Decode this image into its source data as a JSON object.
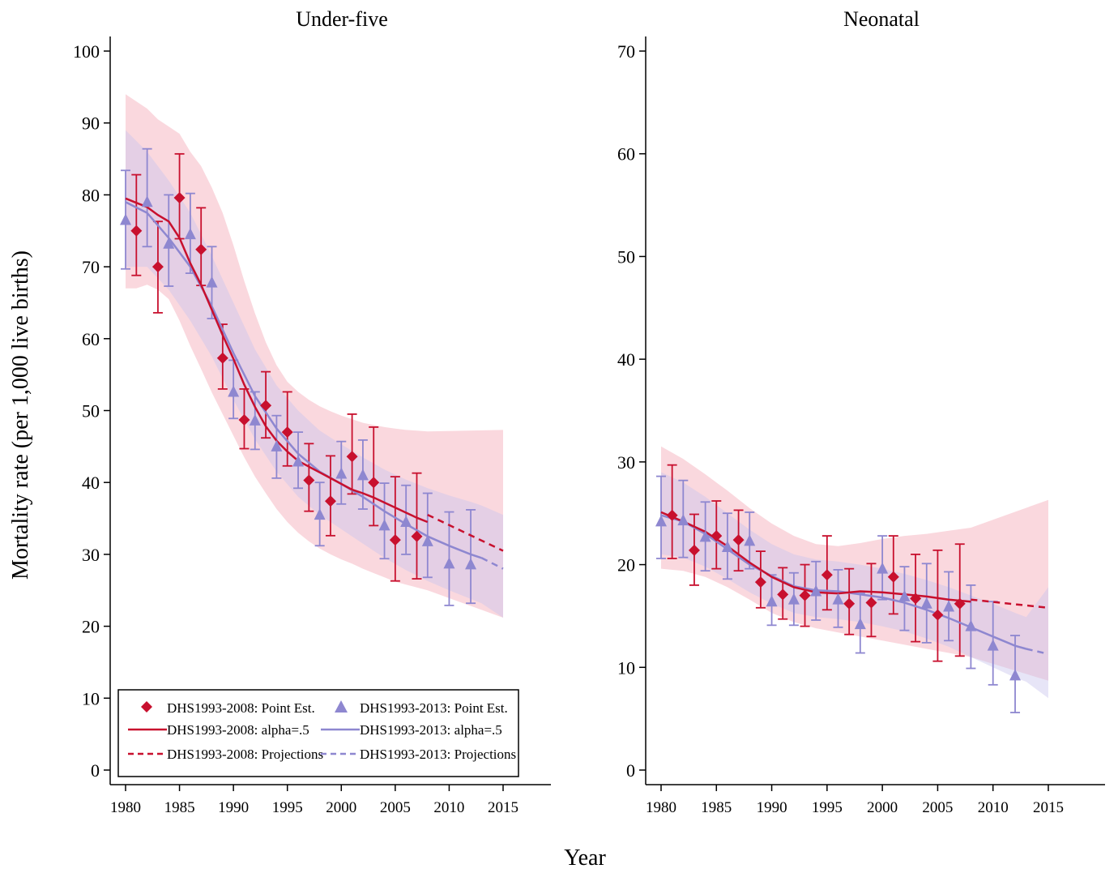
{
  "figure": {
    "ylabel": "Mortality rate (per 1,000 live births)",
    "xlabel": "Year"
  },
  "colors": {
    "dhs2008": "#c8102e",
    "dhs2013": "#8e87d0",
    "band2008": "#f4a9b5",
    "band2013": "#c9c6ee"
  },
  "legend": {
    "point2008": "DHS1993-2008: Point Est.",
    "point2013": "DHS1993-2013: Point Est.",
    "smooth2008": "DHS1993-2008: alpha=.5",
    "smooth2013": "DHS1993-2013: alpha=.5",
    "proj2008": "DHS1993-2008: Projections",
    "proj2013": "DHS1993-2013: Projections"
  },
  "chart_data": [
    {
      "type": "line",
      "title": "Under-five",
      "xlabel": "Year",
      "ylabel": "Mortality rate (per 1,000 live births)",
      "xlim": [
        1980,
        2015
      ],
      "ylim": [
        0,
        100
      ],
      "xticks": [
        1980,
        1985,
        1990,
        1995,
        2000,
        2005,
        2010,
        2015
      ],
      "yticks": [
        0,
        10,
        20,
        30,
        40,
        50,
        60,
        70,
        80,
        90,
        100
      ],
      "legend_position": "bottom-left",
      "point_estimates": [
        {
          "name": "DHS1993-2008: Point Est.",
          "x": [
            1981,
            1983,
            1985,
            1987,
            1989,
            1991,
            1993,
            1995,
            1997,
            1999,
            2001,
            2003,
            2005,
            2007
          ],
          "y": [
            75.0,
            70.0,
            79.6,
            72.4,
            57.3,
            48.7,
            50.7,
            47.0,
            40.3,
            37.4,
            43.6,
            40.0,
            32.0,
            32.5
          ],
          "lo": [
            68.8,
            63.6,
            73.9,
            67.4,
            53.0,
            44.7,
            46.2,
            42.3,
            36.0,
            32.6,
            38.4,
            34.0,
            26.3,
            26.6
          ],
          "hi": [
            82.8,
            76.3,
            85.7,
            78.2,
            62.0,
            53.0,
            55.4,
            52.6,
            45.4,
            43.7,
            49.5,
            47.7,
            40.8,
            41.3
          ]
        },
        {
          "name": "DHS1993-2013: Point Est.",
          "x": [
            1980,
            1982,
            1984,
            1986,
            1988,
            1990,
            1992,
            1994,
            1996,
            1998,
            2000,
            2002,
            2004,
            2006,
            2008,
            2010,
            2012
          ],
          "y": [
            76.5,
            79.0,
            73.2,
            74.5,
            67.8,
            52.6,
            48.6,
            45.0,
            42.9,
            35.5,
            41.2,
            41.0,
            34.0,
            34.5,
            31.8,
            28.7,
            28.6
          ],
          "lo": [
            69.7,
            72.8,
            67.3,
            69.1,
            62.8,
            48.9,
            44.6,
            40.6,
            39.2,
            31.2,
            37.0,
            36.3,
            29.4,
            30.0,
            26.8,
            22.9,
            23.2
          ],
          "hi": [
            83.4,
            86.4,
            80.0,
            80.2,
            72.8,
            57.0,
            52.6,
            49.3,
            47.0,
            40.0,
            45.7,
            45.9,
            39.9,
            39.6,
            38.5,
            35.9,
            36.2
          ]
        }
      ],
      "smoothed": [
        {
          "name": "DHS1993-2008: alpha=.5",
          "x": [
            1980,
            1981,
            1982,
            1983,
            1984,
            1985,
            1986,
            1987,
            1988,
            1989,
            1990,
            1991,
            1992,
            1993,
            1994,
            1995,
            1996,
            1997,
            1998,
            1999,
            2000,
            2001,
            2002,
            2003,
            2004,
            2005,
            2006,
            2007,
            2008
          ],
          "y": [
            79.5,
            78.9,
            78.3,
            77.2,
            76.3,
            74.0,
            70.5,
            67.5,
            64.0,
            60.5,
            57.2,
            53.6,
            50.5,
            47.8,
            45.8,
            44.3,
            43.0,
            42.2,
            41.4,
            40.6,
            39.8,
            39.0,
            38.5,
            37.9,
            37.2,
            36.5,
            35.8,
            35.1,
            34.5
          ],
          "lo": [
            67.0,
            67.0,
            67.5,
            66.8,
            65.5,
            62.5,
            59.0,
            55.8,
            52.5,
            49.5,
            46.5,
            43.5,
            40.8,
            38.5,
            36.3,
            34.5,
            33.0,
            31.8,
            30.8,
            30.0,
            29.3,
            28.7,
            28.0,
            27.4,
            26.8,
            26.2,
            25.8,
            25.4,
            25.0
          ],
          "hi": [
            94.0,
            93.0,
            92.0,
            90.5,
            89.5,
            88.5,
            86.0,
            84.0,
            81.0,
            77.5,
            73.0,
            68.0,
            63.5,
            59.5,
            56.3,
            54.0,
            52.6,
            51.5,
            50.6,
            49.9,
            49.3,
            48.8,
            48.3,
            48.0,
            47.7,
            47.5,
            47.3,
            47.2,
            47.1
          ]
        },
        {
          "name": "DHS1993-2013: alpha=.5",
          "x": [
            1980,
            1982,
            1984,
            1986,
            1988,
            1990,
            1992,
            1994,
            1996,
            1998,
            2000,
            2002,
            2004,
            2006,
            2008,
            2010,
            2012,
            2013
          ],
          "y": [
            79.0,
            77.5,
            74.0,
            70.0,
            64.5,
            58.0,
            52.0,
            47.5,
            44.0,
            41.5,
            39.8,
            38.0,
            36.0,
            34.2,
            32.5,
            31.2,
            30.0,
            29.5
          ],
          "lo": [
            70.0,
            70.0,
            66.8,
            62.5,
            57.5,
            51.5,
            46.0,
            41.5,
            38.0,
            35.5,
            33.5,
            31.5,
            29.5,
            27.8,
            26.3,
            25.0,
            23.8,
            23.2
          ],
          "hi": [
            89.0,
            86.0,
            82.0,
            77.5,
            71.5,
            65.0,
            58.5,
            53.5,
            50.0,
            47.2,
            45.3,
            43.5,
            41.8,
            40.4,
            39.2,
            38.2,
            37.3,
            36.8
          ]
        }
      ],
      "projections": [
        {
          "name": "DHS1993-2008: Projections",
          "x": [
            2008,
            2015
          ],
          "y": [
            35.5,
            30.5
          ],
          "lo": [
            25.0,
            21.2
          ],
          "hi": [
            47.1,
            47.3
          ]
        },
        {
          "name": "DHS1993-2013: Projections",
          "x": [
            2013,
            2015
          ],
          "y": [
            29.5,
            28.0
          ],
          "lo": [
            23.2,
            21.2
          ],
          "hi": [
            36.8,
            35.5
          ]
        }
      ]
    },
    {
      "type": "line",
      "title": "Neonatal",
      "xlabel": "Year",
      "ylabel": "Mortality rate (per 1,000 live births)",
      "xlim": [
        1980,
        2015
      ],
      "ylim": [
        0,
        70
      ],
      "xticks": [
        1980,
        1985,
        1990,
        1995,
        2000,
        2005,
        2010,
        2015
      ],
      "yticks": [
        0,
        10,
        20,
        30,
        40,
        50,
        60,
        70
      ],
      "point_estimates": [
        {
          "name": "DHS1993-2008: Point Est.",
          "x": [
            1981,
            1983,
            1985,
            1987,
            1989,
            1991,
            1993,
            1995,
            1997,
            1999,
            2001,
            2003,
            2005,
            2007
          ],
          "y": [
            24.8,
            21.4,
            22.8,
            22.4,
            18.3,
            17.1,
            17.0,
            19.0,
            16.2,
            16.3,
            18.8,
            16.7,
            15.1,
            16.2
          ],
          "lo": [
            20.6,
            18.0,
            19.6,
            19.4,
            15.8,
            14.7,
            14.0,
            15.6,
            13.2,
            13.0,
            15.2,
            12.5,
            10.6,
            11.1
          ],
          "hi": [
            29.7,
            24.9,
            26.2,
            25.3,
            21.3,
            19.7,
            20.0,
            22.8,
            19.6,
            20.1,
            22.8,
            21.0,
            21.4,
            22.0
          ]
        },
        {
          "name": "DHS1993-2013: Point Est.",
          "x": [
            1980,
            1982,
            1984,
            1986,
            1988,
            1990,
            1992,
            1994,
            1996,
            1998,
            2000,
            2002,
            2004,
            2006,
            2008,
            2010,
            2012
          ],
          "y": [
            24.2,
            24.3,
            22.7,
            21.7,
            22.3,
            16.4,
            16.6,
            17.4,
            16.6,
            14.2,
            19.6,
            16.9,
            16.2,
            15.9,
            14.0,
            12.1,
            9.2
          ],
          "lo": [
            20.6,
            20.7,
            19.4,
            18.6,
            19.6,
            14.1,
            14.1,
            14.6,
            13.9,
            11.4,
            16.6,
            13.6,
            12.4,
            12.6,
            9.9,
            8.3,
            5.6
          ],
          "hi": [
            28.6,
            28.2,
            26.1,
            25.0,
            25.1,
            19.0,
            19.2,
            20.3,
            19.5,
            17.2,
            22.8,
            19.8,
            20.1,
            19.3,
            18.0,
            16.4,
            13.1
          ]
        }
      ],
      "smoothed": [
        {
          "name": "DHS1993-2008: alpha=.5",
          "x": [
            1980,
            1982,
            1984,
            1986,
            1988,
            1990,
            1992,
            1994,
            1996,
            1998,
            2000,
            2002,
            2004,
            2006,
            2008
          ],
          "y": [
            25.1,
            24.2,
            23.2,
            21.8,
            20.2,
            18.8,
            17.8,
            17.3,
            17.2,
            17.4,
            17.3,
            17.1,
            16.9,
            16.6,
            16.4
          ],
          "lo": [
            19.6,
            19.4,
            18.8,
            17.8,
            16.6,
            15.3,
            14.4,
            13.8,
            13.4,
            13.0,
            12.6,
            12.2,
            11.8,
            11.4,
            11.0
          ],
          "hi": [
            31.5,
            30.3,
            28.8,
            27.2,
            25.5,
            24.0,
            22.8,
            22.0,
            21.8,
            22.1,
            22.5,
            22.8,
            23.0,
            23.3,
            23.6
          ]
        },
        {
          "name": "DHS1993-2013: alpha=.5",
          "x": [
            1980,
            1982,
            1984,
            1986,
            1988,
            1990,
            1992,
            1994,
            1996,
            1998,
            2000,
            2002,
            2004,
            2006,
            2008,
            2010,
            2012,
            2013
          ],
          "y": [
            24.8,
            24.2,
            23.0,
            21.5,
            20.0,
            18.9,
            17.9,
            17.5,
            17.4,
            17.1,
            16.8,
            16.3,
            15.6,
            14.8,
            13.9,
            13.0,
            12.1,
            11.8
          ],
          "lo": [
            21.0,
            20.7,
            19.8,
            18.6,
            17.3,
            16.2,
            15.3,
            14.9,
            14.7,
            14.4,
            14.0,
            13.5,
            12.8,
            12.0,
            11.0,
            10.0,
            9.0,
            8.6
          ],
          "hi": [
            29.0,
            28.0,
            26.6,
            25.0,
            23.4,
            22.0,
            21.0,
            20.5,
            20.3,
            20.0,
            19.6,
            19.1,
            18.5,
            17.8,
            17.0,
            16.2,
            15.3,
            14.9
          ]
        }
      ],
      "projections": [
        {
          "name": "DHS1993-2008: Projections",
          "x": [
            2008,
            2015
          ],
          "y": [
            16.6,
            15.8
          ],
          "lo": [
            11.0,
            8.7
          ],
          "hi": [
            23.6,
            26.3
          ]
        },
        {
          "name": "DHS1993-2013: Projections",
          "x": [
            2013,
            2015
          ],
          "y": [
            11.8,
            11.3
          ],
          "lo": [
            8.6,
            7.0
          ],
          "hi": [
            14.9,
            17.8
          ]
        }
      ]
    }
  ]
}
